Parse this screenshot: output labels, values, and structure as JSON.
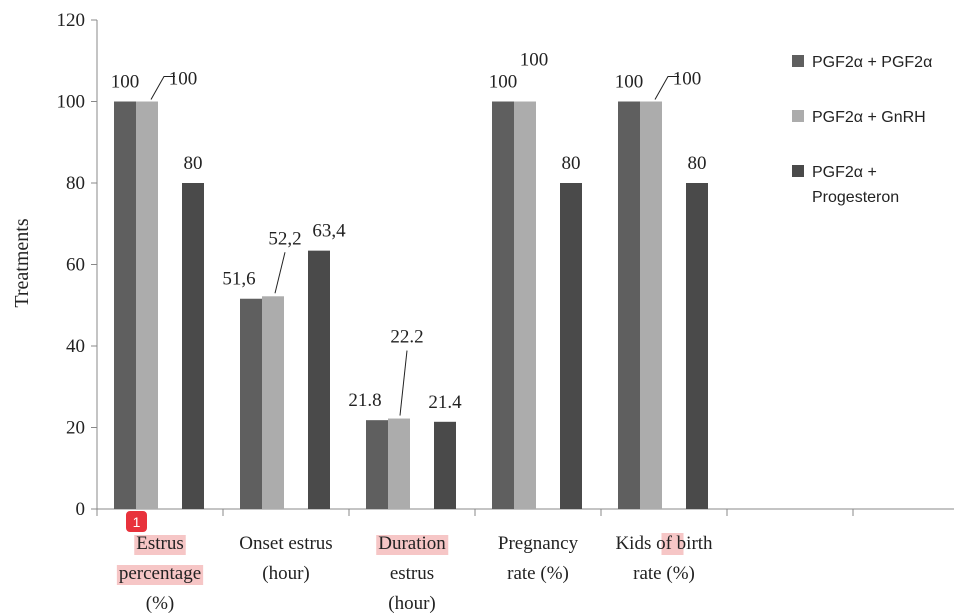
{
  "chart_data": {
    "type": "bar",
    "ylabel": "Treatments",
    "ylim": [
      0,
      120
    ],
    "yticks": [
      0,
      20,
      40,
      60,
      80,
      100,
      120
    ],
    "grid": false,
    "legend_position": "right",
    "categories": [
      {
        "lines": [
          "Estrus",
          "percentage",
          "(%)"
        ],
        "highlight": [
          true,
          true,
          false
        ]
      },
      {
        "lines": [
          "Onset estrus",
          "(hour)"
        ],
        "highlight": [
          false,
          false
        ]
      },
      {
        "lines": [
          "Duration",
          "estrus",
          "(hour)"
        ],
        "highlight": [
          true,
          false,
          false
        ]
      },
      {
        "lines": [
          "Pregnancy",
          "rate (%)"
        ],
        "highlight": [
          false,
          false
        ]
      },
      {
        "lines": [
          "Kids of birth",
          "rate (%)"
        ],
        "highlight": [
          false,
          false
        ]
      }
    ],
    "series": [
      {
        "name": "PGF2α + PGF2α",
        "color": "#5f5f5f",
        "values": [
          100,
          51.6,
          21.8,
          100,
          100
        ],
        "labels": [
          "100",
          "51,6",
          "21.8",
          "100",
          "100"
        ]
      },
      {
        "name": "PGF2α + GnRH",
        "color": "#acacac",
        "values": [
          100,
          52.2,
          22.2,
          100,
          100
        ],
        "labels": [
          "100",
          "52,2",
          "22.2",
          "100",
          "100"
        ]
      },
      {
        "name": "PGF2α + Progesteron",
        "color": "#4a4a4a",
        "values": [
          80,
          63.4,
          21.4,
          80,
          80
        ],
        "labels": [
          "80",
          "63,4",
          "21.4",
          "80",
          "80"
        ]
      }
    ],
    "legend_lines": [
      [
        "PGF2α + PGF2α"
      ],
      [
        "PGF2α + GnRH"
      ],
      [
        "PGF2α +",
        "Progesteron"
      ]
    ],
    "annotation_badge": "1",
    "highlight_word": "of"
  }
}
